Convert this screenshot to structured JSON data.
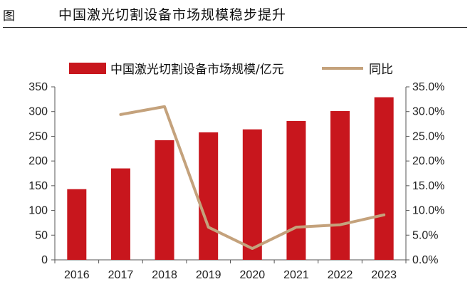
{
  "figure": {
    "label": "图",
    "title": "中国激光切割设备市场规模稳步提升"
  },
  "colors": {
    "bar": "#c8161d",
    "line": "#c4a27c",
    "axis": "#555555"
  },
  "chart_data": {
    "type": "bar",
    "categories": [
      "2016",
      "2017",
      "2018",
      "2019",
      "2020",
      "2021",
      "2022",
      "2023"
    ],
    "series": [
      {
        "name": "中国激光切割设备市场规模/亿元",
        "type": "bar",
        "axis": "left",
        "values": [
          143,
          185,
          242,
          258,
          264,
          281,
          301,
          329
        ]
      },
      {
        "name": "同比",
        "type": "line",
        "axis": "right",
        "values": [
          null,
          29.4,
          31.0,
          6.6,
          2.3,
          6.6,
          7.1,
          9.1
        ]
      }
    ],
    "yleft": {
      "min": 0,
      "max": 350,
      "ticks": [
        "0",
        "50",
        "100",
        "150",
        "200",
        "250",
        "300",
        "350"
      ]
    },
    "yright": {
      "min": 0,
      "max": 35,
      "ticks": [
        "0.0%",
        "5.0%",
        "10.0%",
        "15.0%",
        "20.0%",
        "25.0%",
        "30.0%",
        "35.0%"
      ]
    },
    "legend_position": "top",
    "grid": false
  }
}
